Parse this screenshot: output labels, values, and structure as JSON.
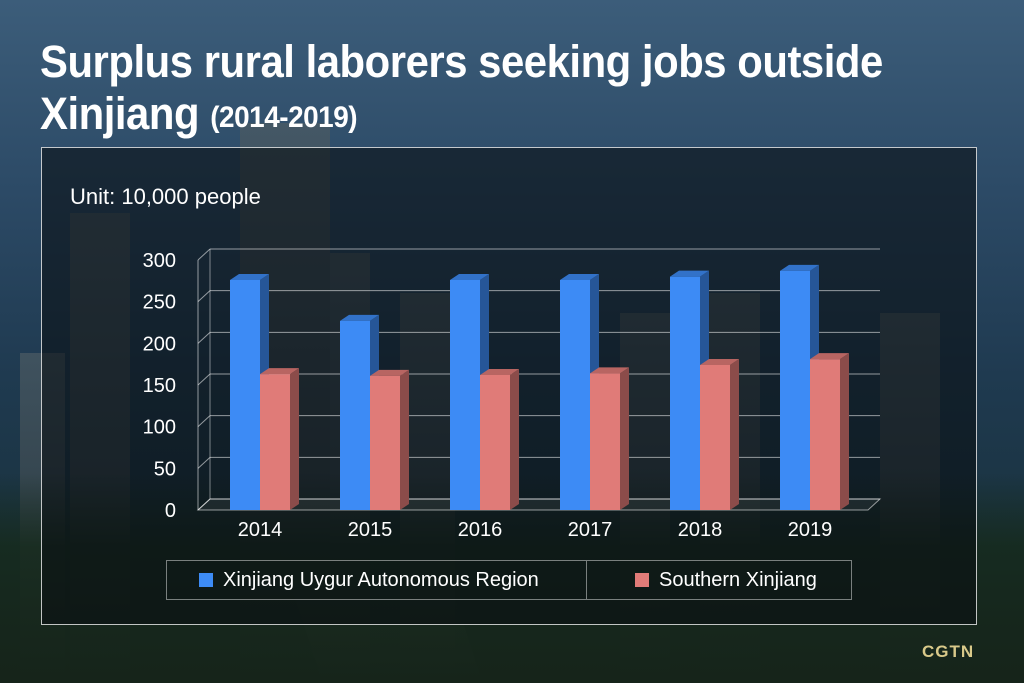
{
  "title": {
    "main": "Surplus rural laborers seeking jobs outside Xinjiang",
    "sub": "(2014-2019)"
  },
  "unit_label": "Unit: 10,000 people",
  "logo": "CGTN",
  "colors": {
    "series1": "#3d8bf5",
    "series2": "#e07b78",
    "panel_border": "#ffffff"
  },
  "chart_data": {
    "type": "bar",
    "categories": [
      "2014",
      "2015",
      "2016",
      "2017",
      "2018",
      "2019"
    ],
    "series": [
      {
        "name": "Xinjiang Uygur Autonomous Region",
        "values": [
          276,
          227,
          276,
          276,
          280,
          287
        ]
      },
      {
        "name": "Southern Xinjiang",
        "values": [
          163,
          161,
          162,
          164,
          174,
          181
        ]
      }
    ],
    "yticks": [
      0,
      50,
      100,
      150,
      200,
      250,
      300
    ],
    "ylim": [
      0,
      300
    ],
    "grid": true,
    "legend_position": "bottom"
  }
}
